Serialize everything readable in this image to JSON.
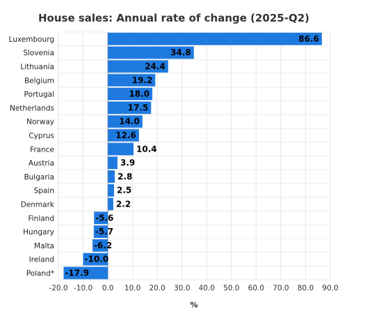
{
  "chart_data": {
    "type": "bar",
    "orientation": "horizontal",
    "title": "House sales: Annual rate of change (2025-Q2)",
    "xlabel": "%",
    "ylabel": "",
    "xlim": [
      -20,
      90
    ],
    "xticks": [
      -20,
      -10,
      0,
      10,
      20,
      30,
      40,
      50,
      60,
      70,
      80,
      90
    ],
    "xtick_labels": [
      "-20.0",
      "-10.0",
      "0.0",
      "10.0",
      "20.0",
      "30.0",
      "40.0",
      "50.0",
      "60.0",
      "70.0",
      "80.0",
      "90.0"
    ],
    "grid": true,
    "legend": "none",
    "bar_color": "#1f7ae0",
    "categories": [
      "Luxembourg",
      "Slovenia",
      "Lithuania",
      "Belgium",
      "Portugal",
      "Netherlands",
      "Norway",
      "Cyprus",
      "France",
      "Austria",
      "Bulgaria",
      "Spain",
      "Denmark",
      "Finland",
      "Hungary",
      "Malta",
      "Ireland",
      "Poland*"
    ],
    "values": [
      86.6,
      34.8,
      24.4,
      19.2,
      18.0,
      17.5,
      14.0,
      12.6,
      10.4,
      3.9,
      2.8,
      2.5,
      2.2,
      -5.6,
      -5.7,
      -6.2,
      -10.0,
      -17.9
    ],
    "value_labels": [
      "86.6",
      "34.8",
      "24.4",
      "19.2",
      "18.0",
      "17.5",
      "14.0",
      "12.6",
      "10.4",
      "3.9",
      "2.8",
      "2.5",
      "2.2",
      "-5.6",
      "-5.7",
      "-6.2",
      "-10.0",
      "-17.9"
    ]
  }
}
